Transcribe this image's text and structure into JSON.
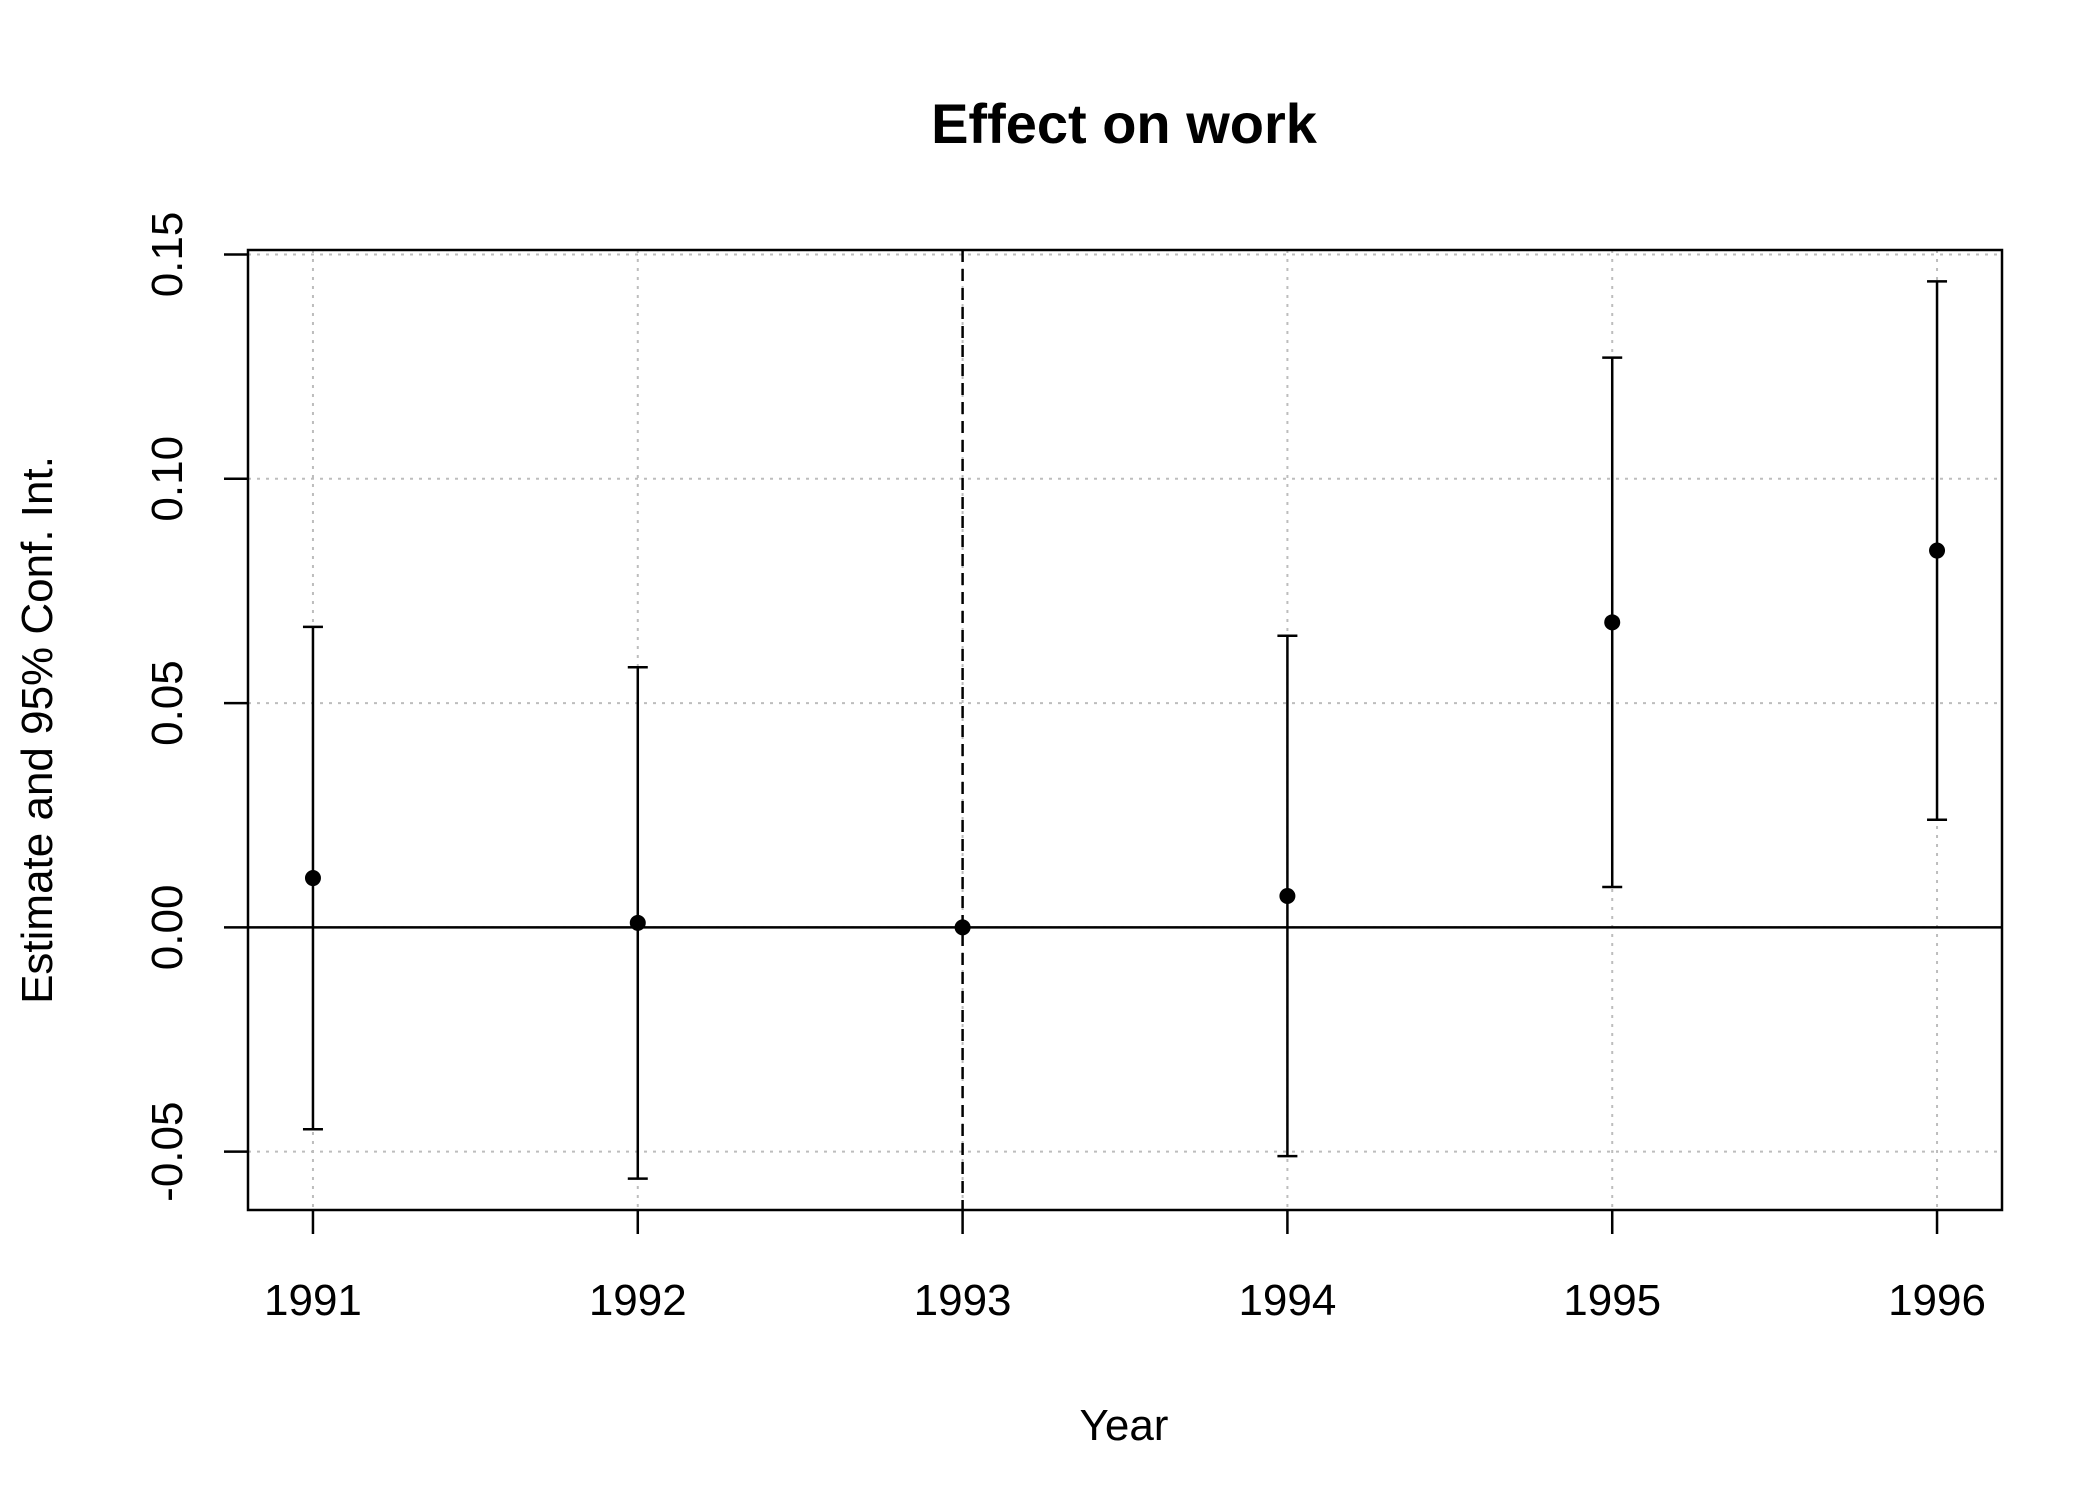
{
  "chart_data": {
    "type": "scatter",
    "title": "Effect on work",
    "xlabel": "Year",
    "ylabel": "Estimate and 95% Conf. Int.",
    "x_ticks": [
      "1991",
      "1992",
      "1993",
      "1994",
      "1995",
      "1996"
    ],
    "y_ticks": [
      "-0.05",
      "0.00",
      "0.05",
      "0.10",
      "0.15"
    ],
    "xlim": [
      1990.8,
      1996.2
    ],
    "ylim": [
      -0.063,
      0.151
    ],
    "grid": true,
    "reference_line_y": 0.0,
    "reference_line_x": 1993,
    "points": [
      {
        "x": 1991,
        "estimate": 0.011,
        "lower": -0.045,
        "upper": 0.067
      },
      {
        "x": 1992,
        "estimate": 0.001,
        "lower": -0.056,
        "upper": 0.058
      },
      {
        "x": 1993,
        "estimate": 0.0,
        "lower": 0.0,
        "upper": 0.0
      },
      {
        "x": 1994,
        "estimate": 0.007,
        "lower": -0.051,
        "upper": 0.065
      },
      {
        "x": 1995,
        "estimate": 0.068,
        "lower": 0.009,
        "upper": 0.127
      },
      {
        "x": 1996,
        "estimate": 0.084,
        "lower": 0.024,
        "upper": 0.144
      }
    ],
    "colors": {
      "marks": "#000000",
      "grid": "#bdbdbd",
      "background": "#ffffff"
    }
  }
}
